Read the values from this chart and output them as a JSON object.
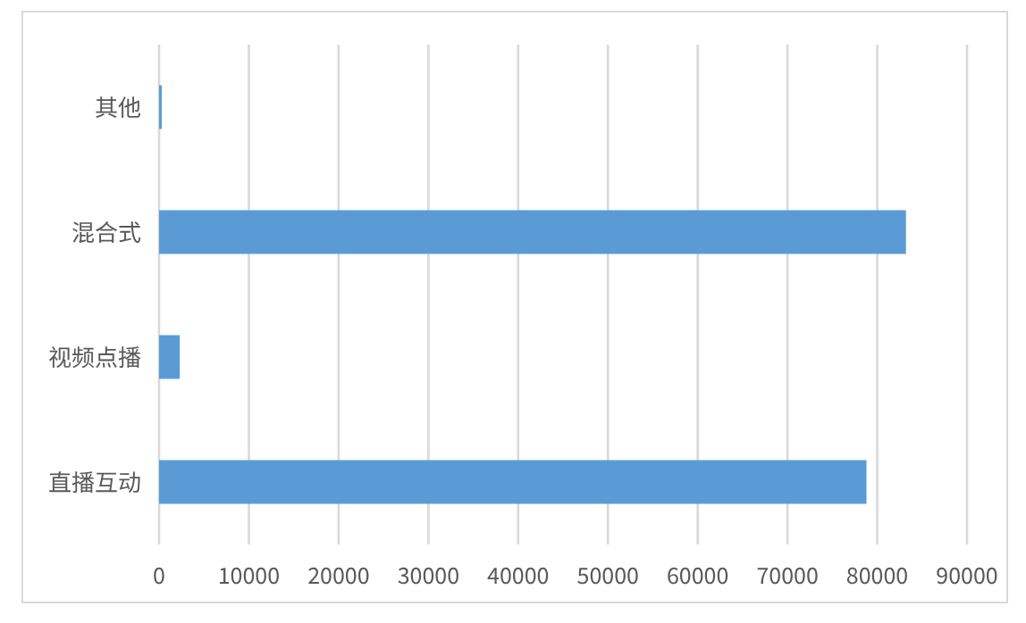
{
  "chart_data": {
    "type": "bar",
    "orientation": "horizontal",
    "categories": [
      "其他",
      "混合式",
      "视频点播",
      "直播互动"
    ],
    "values": [
      300,
      83200,
      2300,
      78800
    ],
    "color": "#5b9bd5",
    "xlim": [
      0,
      90000
    ],
    "xticks": [
      0,
      10000,
      20000,
      30000,
      40000,
      50000,
      60000,
      70000,
      80000,
      90000
    ],
    "grid": "x"
  }
}
